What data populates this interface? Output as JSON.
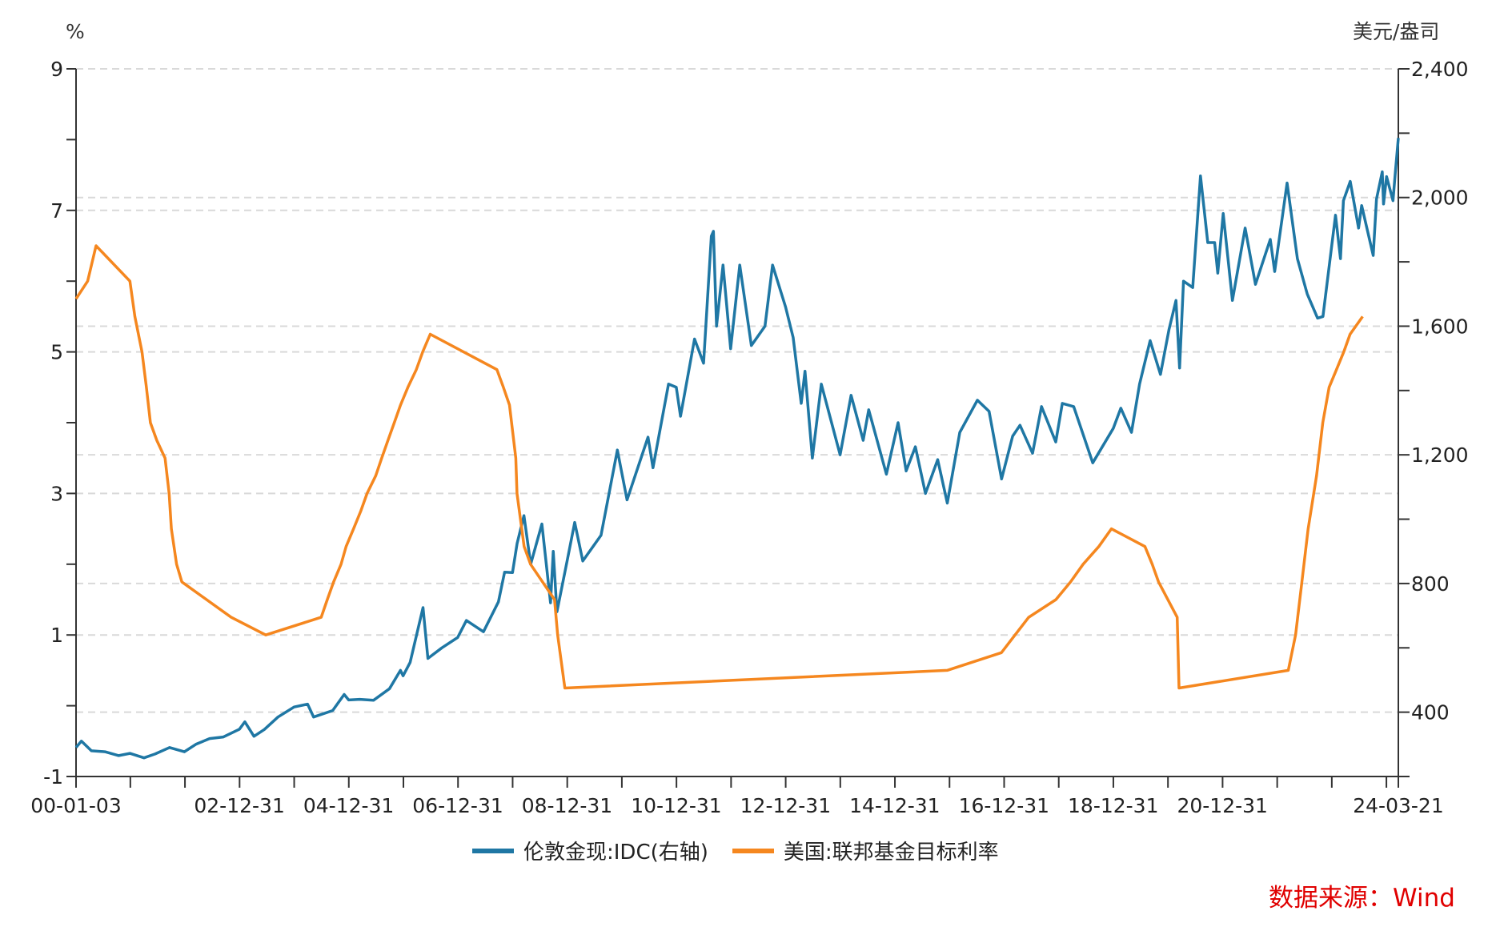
{
  "chart_data": {
    "type": "line",
    "left_axis": {
      "unit_label": "%",
      "ylim": [
        -1,
        9
      ],
      "ticks": [
        "9",
        "7",
        "5",
        "3",
        "1",
        "-1"
      ],
      "tick_values": [
        9,
        7,
        5,
        3,
        1,
        -1
      ],
      "minor_step": 1
    },
    "right_axis": {
      "unit_label": "美元/盎司",
      "ylim": [
        200,
        2400
      ],
      "ticks": [
        "2,400",
        "2,000",
        "1,600",
        "1,200",
        "800",
        "400"
      ],
      "tick_values": [
        2400,
        2000,
        1600,
        1200,
        800,
        400
      ],
      "minor_step": 200
    },
    "x_axis": {
      "range": [
        "2000-01-03",
        "2024-03-21"
      ],
      "tick_labels": [
        "00-01-03",
        "02-12-31",
        "04-12-31",
        "06-12-31",
        "08-12-31",
        "10-12-31",
        "12-12-31",
        "14-12-31",
        "16-12-31",
        "18-12-31",
        "20-12-31",
        "24-03-21"
      ],
      "tick_label_dates": [
        "2000-01-03",
        "2002-12-31",
        "2004-12-31",
        "2006-12-31",
        "2008-12-31",
        "2010-12-31",
        "2012-12-31",
        "2014-12-31",
        "2016-12-31",
        "2018-12-31",
        "2020-12-31",
        "2024-03-21"
      ]
    },
    "grid": "horizontal dashed",
    "legend_position": "bottom",
    "series": [
      {
        "name": "伦敦金现:IDC(右轴)",
        "axis": "right",
        "color": "#1f77a4",
        "points": [
          [
            "2000-01-03",
            290
          ],
          [
            "2000-02-08",
            310
          ],
          [
            "2000-04-15",
            280
          ],
          [
            "2000-07-15",
            277
          ],
          [
            "2000-10-15",
            265
          ],
          [
            "2000-12-29",
            272
          ],
          [
            "2001-04-02",
            258
          ],
          [
            "2001-06-15",
            270
          ],
          [
            "2001-09-20",
            290
          ],
          [
            "2001-12-28",
            277
          ],
          [
            "2002-03-15",
            300
          ],
          [
            "2002-06-15",
            318
          ],
          [
            "2002-09-15",
            323
          ],
          [
            "2002-12-31",
            347
          ],
          [
            "2003-02-05",
            370
          ],
          [
            "2003-04-07",
            325
          ],
          [
            "2003-06-15",
            346
          ],
          [
            "2003-09-15",
            385
          ],
          [
            "2003-12-31",
            416
          ],
          [
            "2004-03-31",
            425
          ],
          [
            "2004-05-10",
            385
          ],
          [
            "2004-09-15",
            405
          ],
          [
            "2004-12-01",
            455
          ],
          [
            "2004-12-31",
            438
          ],
          [
            "2005-03-15",
            440
          ],
          [
            "2005-06-15",
            437
          ],
          [
            "2005-09-30",
            473
          ],
          [
            "2005-12-12",
            530
          ],
          [
            "2005-12-30",
            513
          ],
          [
            "2006-02-15",
            555
          ],
          [
            "2006-05-12",
            725
          ],
          [
            "2006-06-14",
            567
          ],
          [
            "2006-09-15",
            600
          ],
          [
            "2006-12-29",
            632
          ],
          [
            "2007-02-26",
            685
          ],
          [
            "2007-06-20",
            650
          ],
          [
            "2007-09-28",
            743
          ],
          [
            "2007-11-08",
            835
          ],
          [
            "2007-12-31",
            834
          ],
          [
            "2008-01-31",
            924
          ],
          [
            "2008-03-17",
            1011
          ],
          [
            "2008-05-01",
            860
          ],
          [
            "2008-07-15",
            985
          ],
          [
            "2008-09-11",
            740
          ],
          [
            "2008-09-29",
            900
          ],
          [
            "2008-10-24",
            712
          ],
          [
            "2008-12-31",
            870
          ],
          [
            "2009-02-20",
            990
          ],
          [
            "2009-04-15",
            870
          ],
          [
            "2009-08-15",
            950
          ],
          [
            "2009-12-02",
            1215
          ],
          [
            "2010-02-05",
            1060
          ],
          [
            "2010-06-25",
            1255
          ],
          [
            "2010-07-28",
            1160
          ],
          [
            "2010-11-09",
            1420
          ],
          [
            "2010-12-31",
            1410
          ],
          [
            "2011-01-28",
            1320
          ],
          [
            "2011-05-02",
            1560
          ],
          [
            "2011-07-01",
            1485
          ],
          [
            "2011-08-22",
            1880
          ],
          [
            "2011-09-05",
            1895
          ],
          [
            "2011-09-26",
            1600
          ],
          [
            "2011-11-08",
            1790
          ],
          [
            "2011-12-29",
            1530
          ],
          [
            "2012-02-28",
            1790
          ],
          [
            "2012-05-16",
            1540
          ],
          [
            "2012-08-15",
            1600
          ],
          [
            "2012-10-05",
            1790
          ],
          [
            "2012-12-31",
            1660
          ],
          [
            "2013-02-20",
            1565
          ],
          [
            "2013-04-15",
            1360
          ],
          [
            "2013-05-10",
            1460
          ],
          [
            "2013-06-28",
            1190
          ],
          [
            "2013-08-27",
            1420
          ],
          [
            "2013-12-31",
            1200
          ],
          [
            "2014-03-14",
            1385
          ],
          [
            "2014-06-03",
            1245
          ],
          [
            "2014-07-10",
            1340
          ],
          [
            "2014-11-05",
            1140
          ],
          [
            "2015-01-22",
            1300
          ],
          [
            "2015-03-17",
            1150
          ],
          [
            "2015-05-18",
            1225
          ],
          [
            "2015-07-24",
            1080
          ],
          [
            "2015-10-14",
            1185
          ],
          [
            "2015-12-17",
            1050
          ],
          [
            "2016-03-10",
            1270
          ],
          [
            "2016-07-06",
            1370
          ],
          [
            "2016-09-22",
            1335
          ],
          [
            "2016-12-15",
            1125
          ],
          [
            "2017-02-27",
            1258
          ],
          [
            "2017-04-17",
            1292
          ],
          [
            "2017-07-10",
            1205
          ],
          [
            "2017-09-08",
            1350
          ],
          [
            "2017-12-12",
            1240
          ],
          [
            "2018-01-25",
            1360
          ],
          [
            "2018-04-11",
            1350
          ],
          [
            "2018-08-16",
            1175
          ],
          [
            "2018-12-31",
            1282
          ],
          [
            "2019-02-20",
            1345
          ],
          [
            "2019-05-02",
            1270
          ],
          [
            "2019-06-25",
            1420
          ],
          [
            "2019-09-04",
            1555
          ],
          [
            "2019-11-12",
            1450
          ],
          [
            "2020-01-08",
            1590
          ],
          [
            "2020-02-24",
            1680
          ],
          [
            "2020-03-19",
            1470
          ],
          [
            "2020-04-14",
            1740
          ],
          [
            "2020-06-15",
            1720
          ],
          [
            "2020-08-06",
            2067
          ],
          [
            "2020-09-24",
            1860
          ],
          [
            "2020-11-09",
            1860
          ],
          [
            "2020-11-30",
            1765
          ],
          [
            "2021-01-05",
            1950
          ],
          [
            "2021-03-08",
            1680
          ],
          [
            "2021-06-01",
            1905
          ],
          [
            "2021-08-09",
            1730
          ],
          [
            "2021-11-16",
            1870
          ],
          [
            "2021-12-15",
            1770
          ],
          [
            "2022-03-08",
            2045
          ],
          [
            "2022-05-16",
            1810
          ],
          [
            "2022-07-21",
            1700
          ],
          [
            "2022-09-28",
            1625
          ],
          [
            "2022-11-03",
            1630
          ],
          [
            "2023-01-26",
            1945
          ],
          [
            "2023-02-28",
            1810
          ],
          [
            "2023-03-20",
            1990
          ],
          [
            "2023-05-04",
            2050
          ],
          [
            "2023-06-29",
            1905
          ],
          [
            "2023-07-20",
            1975
          ],
          [
            "2023-10-05",
            1820
          ],
          [
            "2023-10-27",
            1995
          ],
          [
            "2023-12-04",
            2080
          ],
          [
            "2023-12-13",
            1980
          ],
          [
            "2024-01-02",
            2065
          ],
          [
            "2024-02-14",
            1990
          ],
          [
            "2024-03-01",
            2080
          ],
          [
            "2024-03-21",
            2185
          ]
        ]
      },
      {
        "name": "美国:联邦基金目标利率",
        "axis": "left",
        "color": "#f5871f",
        "points": [
          [
            "2000-01-03",
            5.75
          ],
          [
            "2000-03-21",
            6.0
          ],
          [
            "2000-05-16",
            6.5
          ],
          [
            "2000-12-29",
            6.0
          ],
          [
            "2001-01-31",
            5.5
          ],
          [
            "2001-03-20",
            5.0
          ],
          [
            "2001-04-18",
            4.5
          ],
          [
            "2001-05-15",
            4.0
          ],
          [
            "2001-06-27",
            3.75
          ],
          [
            "2001-08-21",
            3.5
          ],
          [
            "2001-09-17",
            3.0
          ],
          [
            "2001-10-02",
            2.5
          ],
          [
            "2001-11-06",
            2.0
          ],
          [
            "2001-12-11",
            1.75
          ],
          [
            "2002-11-06",
            1.25
          ],
          [
            "2003-06-25",
            1.0
          ],
          [
            "2004-06-30",
            1.25
          ],
          [
            "2004-08-10",
            1.5
          ],
          [
            "2004-09-21",
            1.75
          ],
          [
            "2004-11-10",
            2.0
          ],
          [
            "2004-12-14",
            2.25
          ],
          [
            "2005-02-02",
            2.5
          ],
          [
            "2005-03-22",
            2.75
          ],
          [
            "2005-05-03",
            3.0
          ],
          [
            "2005-06-30",
            3.25
          ],
          [
            "2005-08-09",
            3.5
          ],
          [
            "2005-09-20",
            3.75
          ],
          [
            "2005-11-01",
            4.0
          ],
          [
            "2005-12-13",
            4.25
          ],
          [
            "2006-01-31",
            4.5
          ],
          [
            "2006-03-28",
            4.75
          ],
          [
            "2006-05-10",
            5.0
          ],
          [
            "2006-06-29",
            5.25
          ],
          [
            "2007-09-18",
            4.75
          ],
          [
            "2007-10-31",
            4.5
          ],
          [
            "2007-12-11",
            4.25
          ],
          [
            "2008-01-22",
            3.5
          ],
          [
            "2008-01-30",
            3.0
          ],
          [
            "2008-03-18",
            2.25
          ],
          [
            "2008-04-30",
            2.0
          ],
          [
            "2008-10-08",
            1.5
          ],
          [
            "2008-10-29",
            1.0
          ],
          [
            "2008-12-16",
            0.25
          ],
          [
            "2015-12-16",
            0.5
          ],
          [
            "2016-12-14",
            0.75
          ],
          [
            "2017-03-15",
            1.0
          ],
          [
            "2017-06-14",
            1.25
          ],
          [
            "2017-12-13",
            1.5
          ],
          [
            "2018-03-21",
            1.75
          ],
          [
            "2018-06-13",
            2.0
          ],
          [
            "2018-09-26",
            2.25
          ],
          [
            "2018-12-19",
            2.5
          ],
          [
            "2019-07-31",
            2.25
          ],
          [
            "2019-09-18",
            2.0
          ],
          [
            "2019-10-30",
            1.75
          ],
          [
            "2020-03-03",
            1.25
          ],
          [
            "2020-03-15",
            0.25
          ],
          [
            "2022-03-16",
            0.5
          ],
          [
            "2022-05-04",
            1.0
          ],
          [
            "2022-06-15",
            1.75
          ],
          [
            "2022-07-27",
            2.5
          ],
          [
            "2022-09-21",
            3.25
          ],
          [
            "2022-11-02",
            4.0
          ],
          [
            "2022-12-14",
            4.5
          ],
          [
            "2023-02-01",
            4.75
          ],
          [
            "2023-03-22",
            5.0
          ],
          [
            "2023-05-03",
            5.25
          ],
          [
            "2023-07-26",
            5.5
          ]
        ]
      }
    ]
  },
  "legend": {
    "items": [
      "伦敦金现:IDC(右轴)",
      "美国:联邦基金目标利率"
    ]
  },
  "source": "数据来源：Wind"
}
